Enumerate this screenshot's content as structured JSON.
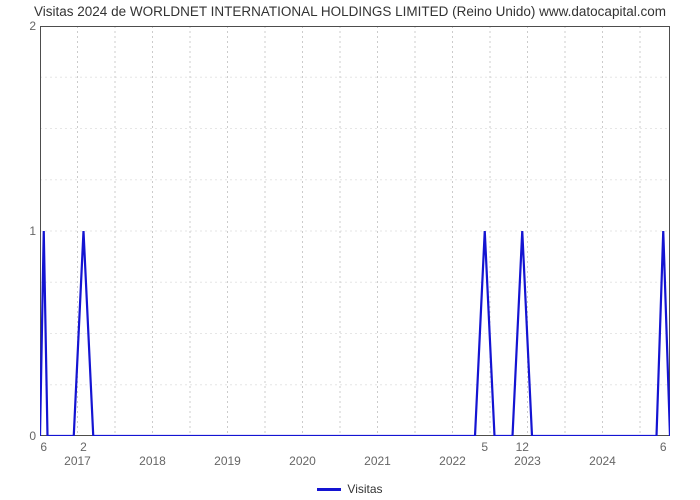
{
  "chart": {
    "type": "line",
    "title": "Visitas 2024 de WORLDNET INTERNATIONAL HOLDINGS LIMITED (Reino Unido) www.datocapital.com",
    "title_fontsize": 13.5,
    "background_color": "#ffffff",
    "line_color": "#1414d2",
    "line_width": 2.2,
    "border_color": "#4d4d4d",
    "inner_vgrid_color": "#cccccc",
    "inner_hgrid_color": "#e6e6e6",
    "inner_grid_dash": "2,3",
    "ylim": [
      0,
      2
    ],
    "yticks": [
      0,
      1,
      2
    ],
    "xlim_years": [
      2016.5,
      2024.9
    ],
    "xgrid_years": [
      2016.5,
      2017,
      2017.5,
      2018,
      2018.5,
      2019,
      2019.5,
      2020,
      2020.5,
      2021,
      2021.5,
      2022,
      2022.5,
      2023,
      2023.5,
      2024,
      2024.5,
      2024.9
    ],
    "xlabel_years": [
      2017,
      2018,
      2019,
      2020,
      2021,
      2022,
      2023,
      2024
    ],
    "legend": {
      "label": "Visitas",
      "color": "#1414d2"
    },
    "series": {
      "x": [
        2016.5,
        2016.55,
        2016.6,
        2016.95,
        2017.08,
        2017.21,
        2022.3,
        2022.43,
        2022.56,
        2022.8,
        2022.93,
        2023.06,
        2024.72,
        2024.81,
        2024.9
      ],
      "y": [
        0,
        1,
        0,
        0,
        1,
        0,
        0,
        1,
        0,
        0,
        1,
        0,
        0,
        1,
        0
      ]
    },
    "peak_annotations": [
      {
        "x": 2016.55,
        "label": "6"
      },
      {
        "x": 2017.08,
        "label": "2"
      },
      {
        "x": 2022.43,
        "label": "5"
      },
      {
        "x": 2022.93,
        "label": "12"
      },
      {
        "x": 2024.81,
        "label": "6"
      }
    ]
  }
}
